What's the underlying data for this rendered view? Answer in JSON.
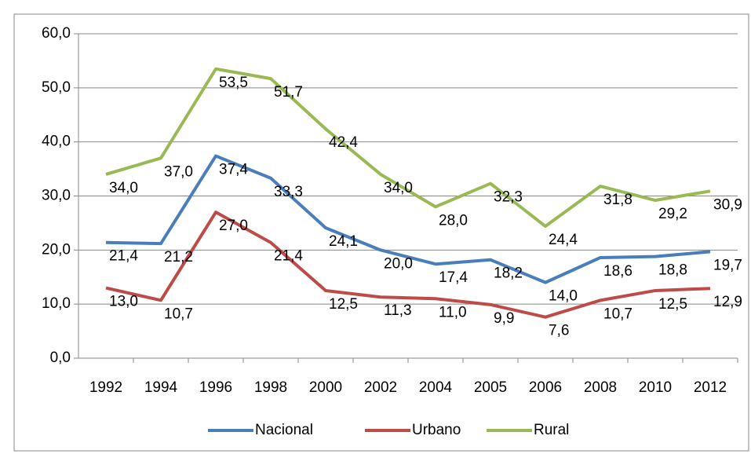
{
  "chart_data": {
    "type": "line",
    "categories": [
      "1992",
      "1994",
      "1996",
      "1998",
      "2000",
      "2002",
      "2004",
      "2005",
      "2006",
      "2008",
      "2010",
      "2012"
    ],
    "series": [
      {
        "name": "Nacional",
        "color": "#4a7ebb",
        "values": [
          21.4,
          21.2,
          37.4,
          33.3,
          24.1,
          20.0,
          17.4,
          18.2,
          14.0,
          18.6,
          18.8,
          19.7
        ],
        "value_labels": [
          "21,4",
          "21,2",
          "37,4",
          "33,3",
          "24,1",
          "20,0",
          "17,4",
          "18,2",
          "14,0",
          "18,6",
          "18,8",
          "19,7"
        ]
      },
      {
        "name": "Urbano",
        "color": "#be4b48",
        "values": [
          13.0,
          10.7,
          27.0,
          21.4,
          12.5,
          11.3,
          11.0,
          9.9,
          7.6,
          10.7,
          12.5,
          12.9
        ],
        "value_labels": [
          "13,0",
          "10,7",
          "27,0",
          "21,4",
          "12,5",
          "11,3",
          "11,0",
          "9,9",
          "7,6",
          "10,7",
          "12,5",
          "12,9"
        ]
      },
      {
        "name": "Rural",
        "color": "#98b954",
        "values": [
          34.0,
          37.0,
          53.5,
          51.7,
          42.4,
          34.0,
          28.0,
          32.3,
          24.4,
          31.8,
          29.2,
          30.9
        ],
        "value_labels": [
          "34,0",
          "37,0",
          "53,5",
          "51,7",
          "42,4",
          "34,0",
          "28,0",
          "32,3",
          "24,4",
          "31,8",
          "29,2",
          "30,9"
        ]
      }
    ],
    "ylim": [
      0,
      60
    ],
    "yticks": [
      {
        "value": 0,
        "label": "0,0"
      },
      {
        "value": 10,
        "label": "10,0"
      },
      {
        "value": 20,
        "label": "20,0"
      },
      {
        "value": 30,
        "label": "30,0"
      },
      {
        "value": 40,
        "label": "40,0"
      },
      {
        "value": 50,
        "label": "50,0"
      },
      {
        "value": 60,
        "label": "60,0"
      }
    ],
    "grid": true,
    "legend": "bottom"
  }
}
